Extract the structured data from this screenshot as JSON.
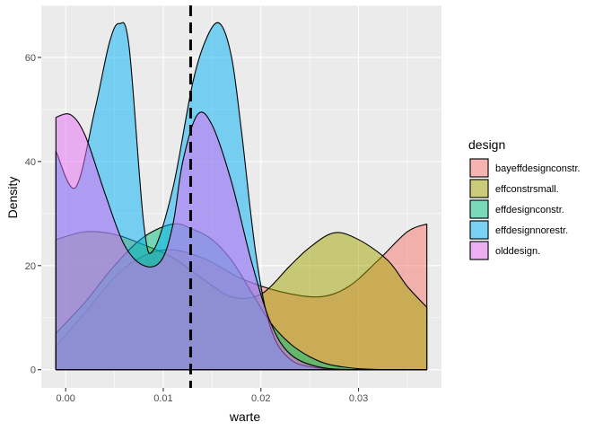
{
  "chart_data": {
    "type": "area",
    "subtype": "density",
    "xlabel": "warte",
    "ylabel": "Density",
    "xlim": [
      -0.0025,
      0.0385
    ],
    "ylim": [
      -3.5,
      70
    ],
    "x_ticks": [
      0.0,
      0.01,
      0.02,
      0.03
    ],
    "x_tick_labels": [
      "0.00",
      "0.01",
      "0.02",
      "0.03"
    ],
    "y_ticks": [
      0,
      20,
      40,
      60
    ],
    "y_tick_labels": [
      "0",
      "20",
      "40",
      "60"
    ],
    "grid": true,
    "background": "#ebebeb",
    "reference_line": {
      "x": 0.0128,
      "style": "dashed",
      "color": "#000000"
    },
    "legend": {
      "title": "design",
      "position": "right",
      "entries": [
        {
          "label": "bayeffdesignconstr.",
          "color": "#F8766D"
        },
        {
          "label": "effconstrsmall.",
          "color": "#A3A500"
        },
        {
          "label": "effdesignconstr.",
          "color": "#00BF7D"
        },
        {
          "label": "effdesignnorestr.",
          "color": "#00B0F6"
        },
        {
          "label": "olddesign.",
          "color": "#E76BF3"
        }
      ]
    },
    "series": [
      {
        "name": "bayeffdesignconstr.",
        "color": "#F8766D",
        "x": [
          -0.001,
          0.002,
          0.006,
          0.01,
          0.014,
          0.018,
          0.022,
          0.026,
          0.029,
          0.032,
          0.035,
          0.037
        ],
        "y": [
          4.5,
          11,
          19.5,
          23,
          21.5,
          17.5,
          15,
          14,
          16,
          21,
          26.5,
          28
        ]
      },
      {
        "name": "effconstrsmall.",
        "color": "#A3A500",
        "x": [
          -0.001,
          0.002,
          0.005,
          0.008,
          0.011,
          0.014,
          0.017,
          0.02,
          0.023,
          0.025,
          0.0275,
          0.03,
          0.033,
          0.035,
          0.037
        ],
        "y": [
          25,
          26.5,
          26,
          24,
          21.5,
          17.5,
          14,
          14.5,
          20,
          23.5,
          26.3,
          25,
          21,
          16,
          12
        ]
      },
      {
        "name": "effdesignconstr.",
        "color": "#00BF7D",
        "x": [
          -0.001,
          0.002,
          0.005,
          0.008,
          0.011,
          0.013,
          0.015,
          0.017,
          0.019,
          0.021,
          0.023,
          0.025,
          0.027,
          0.03,
          0.033,
          0.037
        ],
        "y": [
          7,
          13,
          20,
          25.5,
          28,
          27,
          25,
          21,
          15,
          9,
          5,
          2.5,
          1,
          0.2,
          0,
          0
        ]
      },
      {
        "name": "effdesignnorestr.",
        "color": "#00B0F6",
        "x": [
          -0.001,
          0.001,
          0.003,
          0.0045,
          0.0055,
          0.0065,
          0.008,
          0.009,
          0.011,
          0.013,
          0.0145,
          0.0158,
          0.017,
          0.018,
          0.0195,
          0.021,
          0.023,
          0.026,
          0.03,
          0.037
        ],
        "y": [
          42,
          35,
          50,
          63,
          66.5,
          62,
          28,
          23,
          35,
          55,
          64,
          66.5,
          60,
          46,
          22,
          8,
          2,
          0.3,
          0,
          0
        ]
      },
      {
        "name": "olddesign.",
        "color": "#E76BF3",
        "x": [
          -0.001,
          0.0005,
          0.002,
          0.004,
          0.006,
          0.008,
          0.0098,
          0.011,
          0.012,
          0.0135,
          0.015,
          0.017,
          0.019,
          0.021,
          0.023,
          0.026,
          0.03,
          0.037
        ],
        "y": [
          48.5,
          49,
          45,
          34,
          24,
          20,
          21,
          28,
          40,
          49,
          47,
          36,
          21,
          9,
          3,
          0.5,
          0,
          0
        ]
      }
    ]
  }
}
